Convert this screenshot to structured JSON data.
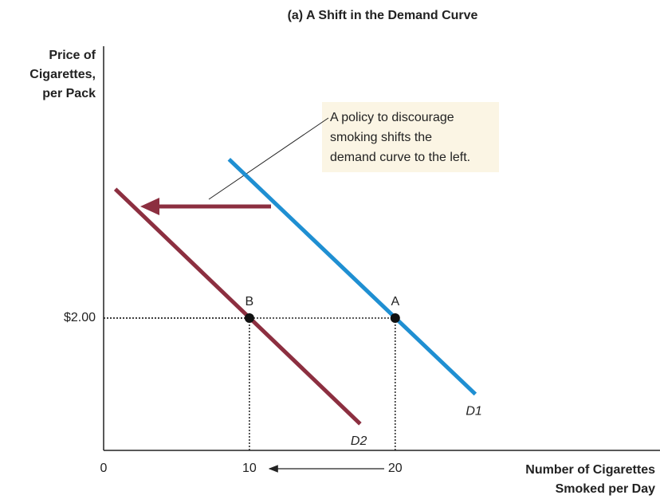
{
  "chart_data": {
    "type": "line",
    "title": "(a) A Shift in the Demand Curve",
    "y_label": [
      "Price of",
      "Cigarettes,",
      "per Pack"
    ],
    "x_label": [
      "Number of Cigarettes",
      "Smoked per Day"
    ],
    "annotation": [
      "A policy to discourage",
      "smoking shifts the",
      "demand curve to the left."
    ],
    "xlim": [
      0,
      38
    ],
    "ylim": [
      0,
      6
    ],
    "xticks": [
      0,
      10,
      20
    ],
    "yticks": [
      {
        "value": 2,
        "label": "$2.00"
      }
    ],
    "series": [
      {
        "name": "D1",
        "color": "#1f8fd2",
        "x": [
          8.6,
          25.5
        ],
        "values": [
          4.4,
          0.85
        ]
      },
      {
        "name": "D2",
        "color": "#8c2f40",
        "x": [
          0.8,
          17.6
        ],
        "values": [
          3.95,
          0.4
        ]
      }
    ],
    "points": [
      {
        "label": "A",
        "x": 20,
        "y": 2
      },
      {
        "label": "B",
        "x": 10,
        "y": 2
      }
    ]
  }
}
